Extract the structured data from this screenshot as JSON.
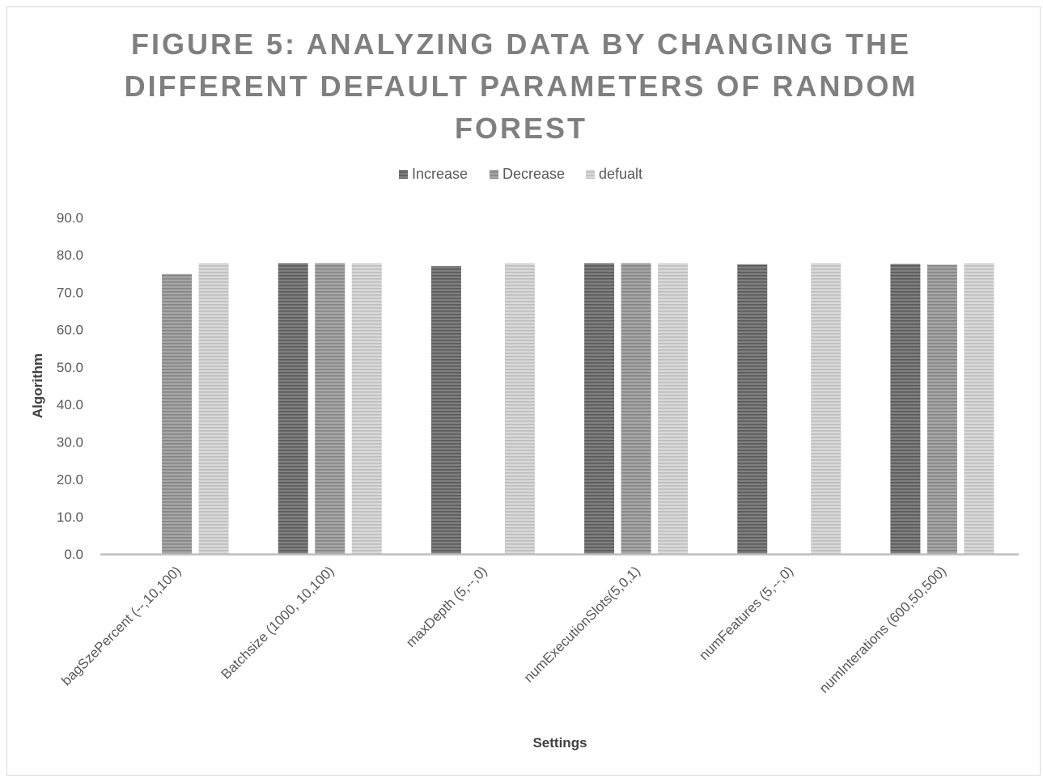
{
  "chart_data": {
    "type": "bar",
    "title_lines": [
      "FIGURE 5: ANALYZING DATA BY CHANGING THE",
      "DIFFERENT DEFAULT PARAMETERS OF RANDOM",
      "FOREST"
    ],
    "xlabel": "Settings",
    "ylabel": "Algorithm",
    "ylim": [
      0,
      90
    ],
    "yticks": [
      "0.0",
      "10.0",
      "20.0",
      "30.0",
      "40.0",
      "50.0",
      "60.0",
      "70.0",
      "80.0",
      "90.0"
    ],
    "legend_position": "top-center",
    "grid": false,
    "categories": [
      "bagSzePercent (--,10,100)",
      "Batchsize (1000, 10,100)",
      "maxDepth (5,--,0)",
      "numExecutionSlots(5,0,1)",
      "numFeatures (5,--,0)",
      "numInterations (600,50,500)"
    ],
    "series": [
      {
        "name": "Increase",
        "color": "#7f7f7f",
        "stripe": "#5a5a5a",
        "values": [
          null,
          77.8,
          77.0,
          77.8,
          77.5,
          77.6
        ]
      },
      {
        "name": "Decrease",
        "color": "#a6a6a6",
        "stripe": "#858585",
        "values": [
          74.9,
          77.8,
          null,
          77.8,
          null,
          77.4
        ]
      },
      {
        "name": "defualt",
        "color": "#d9d9d9",
        "stripe": "#bdbdbd",
        "values": [
          77.8,
          77.8,
          77.8,
          77.8,
          77.8,
          77.8
        ]
      }
    ]
  }
}
